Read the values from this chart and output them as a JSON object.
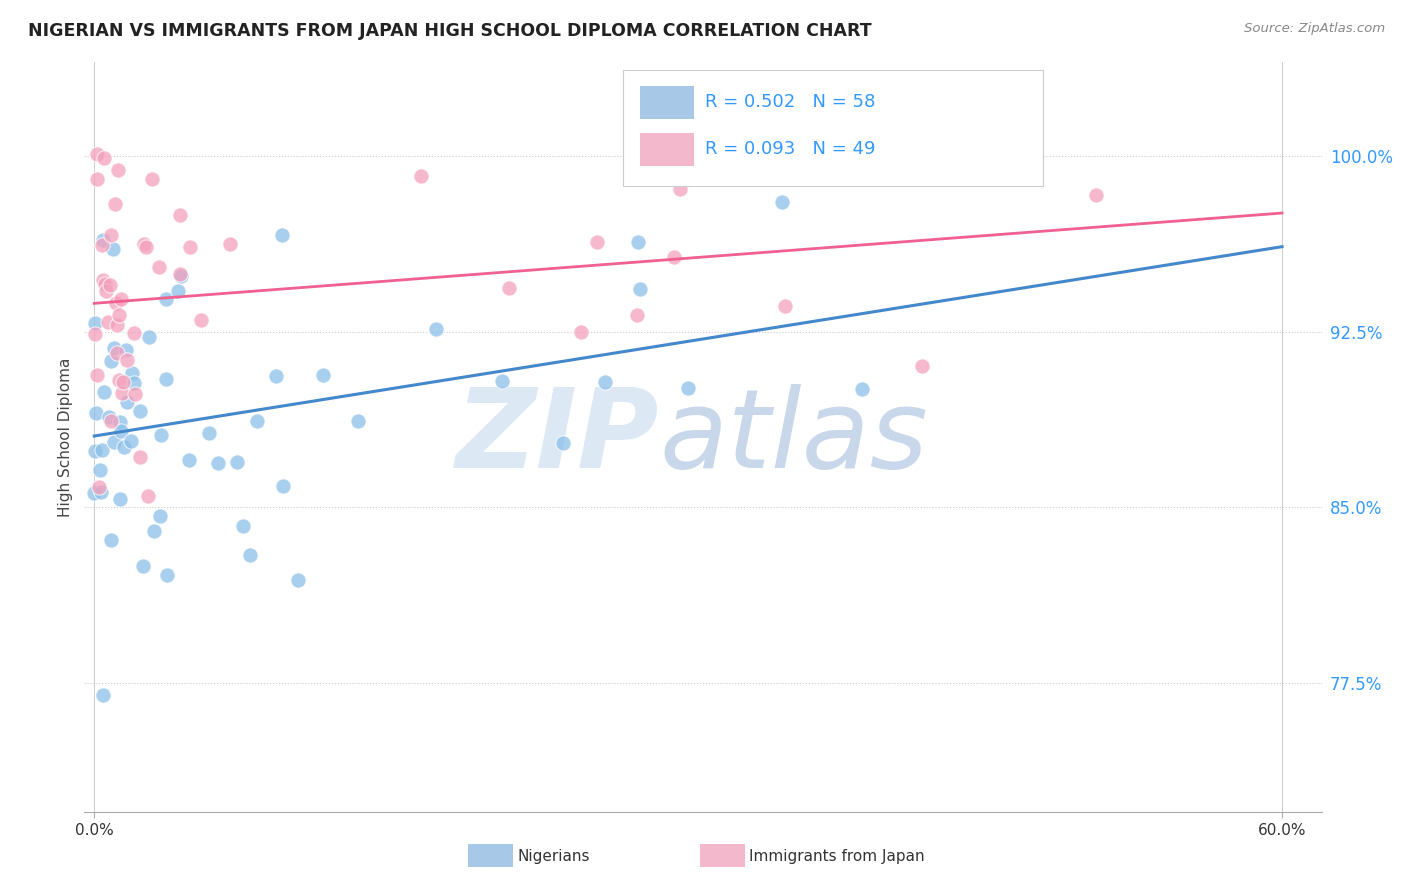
{
  "title": "NIGERIAN VS IMMIGRANTS FROM JAPAN HIGH SCHOOL DIPLOMA CORRELATION CHART",
  "source": "Source: ZipAtlas.com",
  "ylabel": "High School Diploma",
  "ytick_labels": [
    "77.5%",
    "85.0%",
    "92.5%",
    "100.0%"
  ],
  "ytick_values": [
    0.775,
    0.85,
    0.925,
    1.0
  ],
  "xlim": [
    0.0,
    0.6
  ],
  "ylim": [
    0.72,
    1.04
  ],
  "nigerians_color": "#8bbfe8",
  "japan_color": "#f4a0bc",
  "nigeria_trend_color": "#4488cc",
  "japan_trend_color": "#f06090",
  "legend_r_nigeria": "R = 0.502",
  "legend_n_nigeria": "N = 58",
  "legend_r_japan": "R = 0.093",
  "legend_n_japan": "N = 49",
  "watermark_zip": "ZIP",
  "watermark_atlas": "atlas",
  "grid_color": "#cccccc",
  "grid_style": ":",
  "nigeria_seed": 12,
  "japan_seed": 7
}
